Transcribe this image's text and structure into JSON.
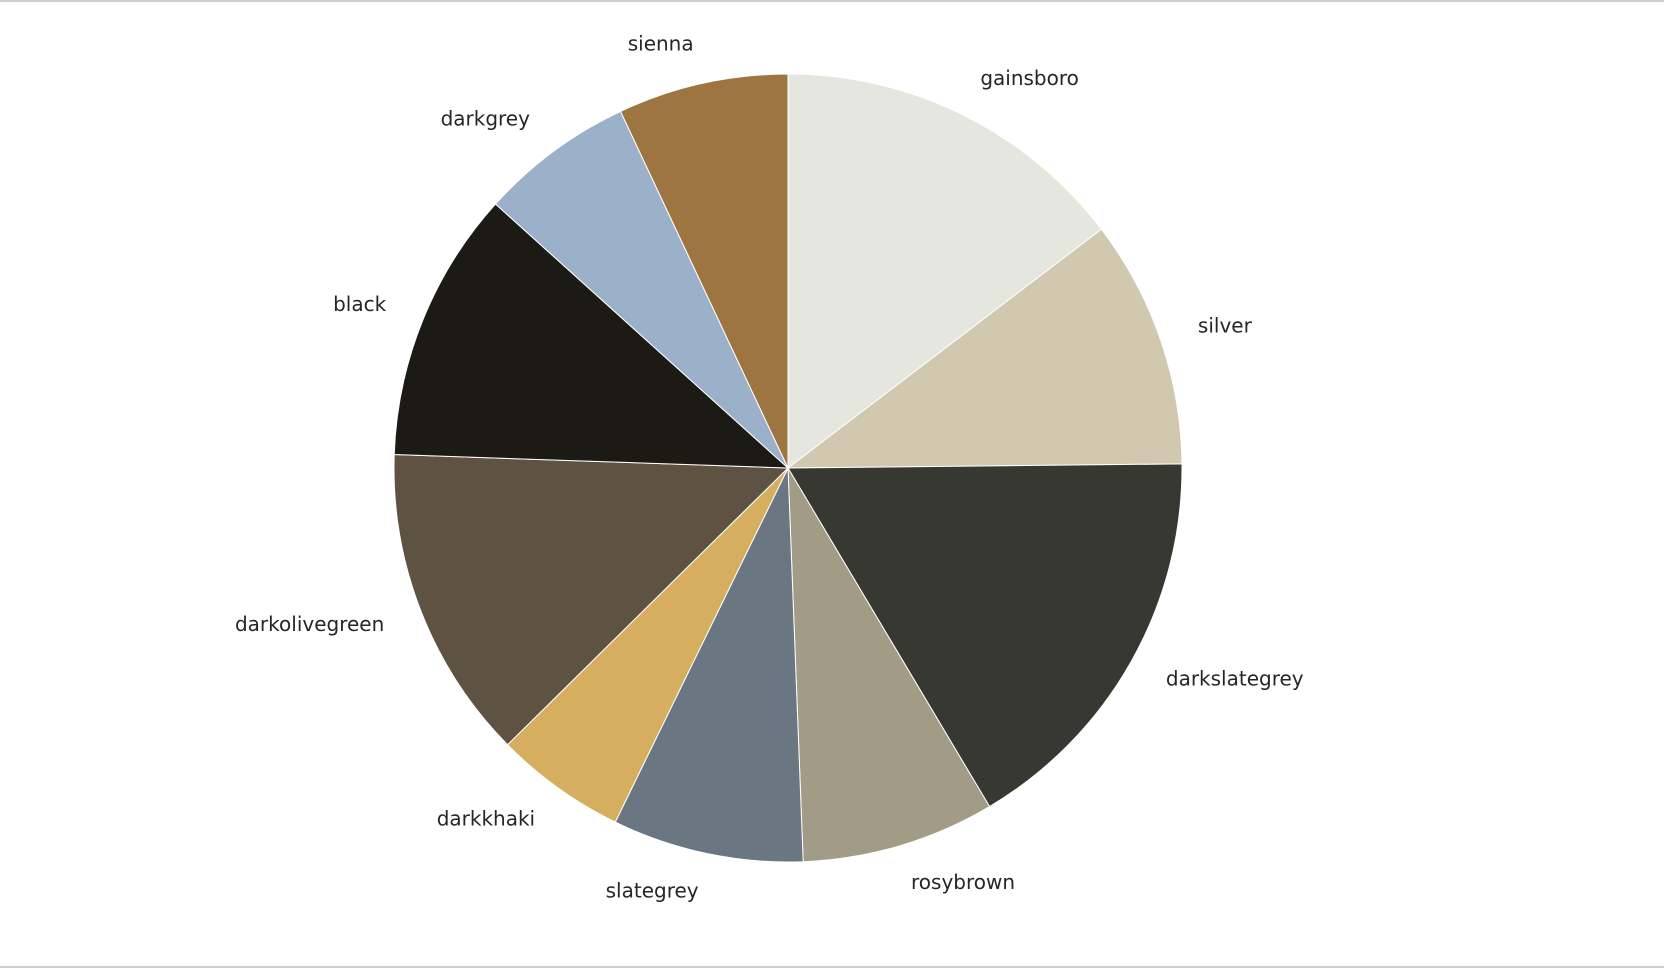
{
  "chart_data": {
    "type": "pie",
    "title": "",
    "start_angle_deg": 90,
    "direction": "clockwise",
    "categories": [
      "gainsboro",
      "silver",
      "darkslategrey",
      "rosybrown",
      "slategrey",
      "darkkhaki",
      "darkolivegreen",
      "black",
      "darkgrey",
      "sienna"
    ],
    "values": [
      15.5,
      10.8,
      17.6,
      8.4,
      8.3,
      5.7,
      13.7,
      11.8,
      6.7,
      7.4
    ],
    "colors": [
      "#e5e6de",
      "#d1c8b0",
      "#383833",
      "#a29c87",
      "#6a7681",
      "#d5af5f",
      "#5e5242",
      "#1c1a15",
      "#9bb0c9",
      "#9e7541"
    ],
    "legend": false
  }
}
